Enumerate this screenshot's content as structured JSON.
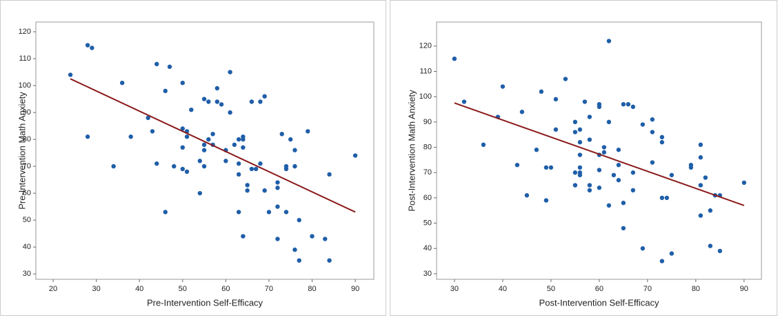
{
  "chart_data": [
    {
      "type": "scatter",
      "x_label": "Pre-Intervention Self-Efficacy",
      "y_label": "Pre-Intervention Math Anxiety",
      "xlim": [
        16,
        94.3
      ],
      "ylim": [
        28,
        123.6
      ],
      "xticks": [
        20,
        30,
        40,
        50,
        60,
        70,
        80,
        90
      ],
      "yticks": [
        30,
        40,
        50,
        60,
        70,
        80,
        90,
        100,
        110,
        120
      ],
      "points": {
        "color": "#1f5ea8",
        "x": [
          24,
          28,
          29,
          28,
          34,
          36,
          38,
          42,
          43,
          44,
          44,
          46,
          46,
          47,
          48,
          50,
          50,
          50,
          50,
          51,
          51,
          51,
          52,
          54,
          54,
          55,
          55,
          55,
          55,
          56,
          56,
          57,
          57,
          58,
          58,
          59,
          60,
          60,
          61,
          61,
          62,
          63,
          63,
          63,
          63,
          64,
          64,
          64,
          64,
          65,
          65,
          66,
          66,
          67,
          68,
          68,
          69,
          69,
          70,
          72,
          72,
          72,
          72,
          73,
          74,
          74,
          74,
          75,
          76,
          76,
          76,
          77,
          77,
          79,
          80,
          83,
          84,
          84,
          90
        ],
        "y": [
          104,
          115,
          114,
          81,
          70,
          101,
          81,
          88,
          83,
          108,
          71,
          98,
          53,
          107,
          70,
          101,
          84,
          77,
          69,
          83,
          81,
          68,
          91,
          72,
          60,
          95,
          78,
          76,
          70,
          94,
          80,
          82,
          78,
          99,
          94,
          93,
          76,
          72,
          105,
          90,
          78,
          80,
          71,
          67,
          53,
          81,
          80,
          77,
          44,
          63,
          61,
          94,
          69,
          69,
          94,
          71,
          96,
          61,
          53,
          64,
          62,
          55,
          43,
          82,
          70,
          69,
          53,
          80,
          76,
          70,
          39,
          50,
          35,
          83,
          44,
          43,
          67,
          35,
          74
        ]
      },
      "fit": {
        "color": "#8b1a1a",
        "x": [
          24,
          90
        ],
        "y": [
          102.5,
          53
        ]
      }
    },
    {
      "type": "scatter",
      "x_label": "Post-Intervention Self-Efficacy",
      "y_label": "Post-Intervention Math Anxiety",
      "xlim": [
        26.3,
        93.6
      ],
      "ylim": [
        27.8,
        129.5
      ],
      "xticks": [
        30,
        40,
        50,
        60,
        70,
        80,
        90
      ],
      "yticks": [
        30,
        40,
        50,
        60,
        70,
        80,
        90,
        100,
        110,
        120
      ],
      "points": {
        "color": "#1f5ea8",
        "x": [
          30,
          32,
          36,
          39,
          40,
          43,
          44,
          45,
          47,
          48,
          49,
          49,
          50,
          51,
          51,
          53,
          55,
          55,
          55,
          55,
          56,
          56,
          56,
          56,
          56,
          56,
          57,
          58,
          58,
          58,
          58,
          60,
          60,
          60,
          60,
          60,
          61,
          61,
          62,
          62,
          62,
          63,
          64,
          64,
          64,
          65,
          65,
          65,
          66,
          67,
          67,
          67,
          69,
          69,
          71,
          71,
          71,
          73,
          73,
          73,
          73,
          74,
          75,
          75,
          79,
          79,
          81,
          81,
          81,
          81,
          82,
          83,
          83,
          84,
          85,
          85,
          90
        ],
        "y": [
          115,
          98,
          81,
          92,
          104,
          73,
          94,
          61,
          79,
          102,
          72,
          59,
          72,
          99,
          87,
          107,
          90,
          86,
          70,
          65,
          87,
          82,
          77,
          72,
          70,
          69,
          98,
          92,
          83,
          65,
          63,
          97,
          96,
          77,
          71,
          64,
          80,
          78,
          122,
          90,
          57,
          69,
          79,
          73,
          67,
          97,
          58,
          48,
          97,
          96,
          70,
          63,
          89,
          40,
          91,
          86,
          74,
          84,
          82,
          60,
          35,
          60,
          69,
          38,
          73,
          72,
          81,
          76,
          65,
          53,
          68,
          55,
          41,
          61,
          61,
          39,
          66
        ]
      },
      "fit": {
        "color": "#8b1a1a",
        "x": [
          30,
          90
        ],
        "y": [
          97.5,
          57
        ]
      }
    }
  ]
}
